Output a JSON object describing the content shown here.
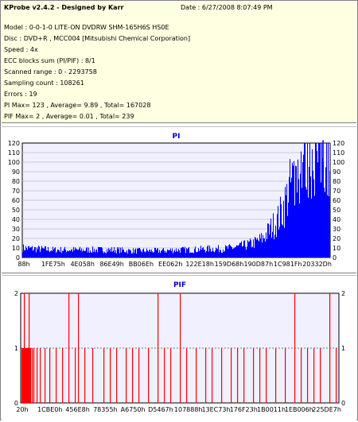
{
  "app": {
    "title": "KProbe v2.4.2 - Designed by Karr",
    "date": "Date : 6/27/2008 8:07:49 PM"
  },
  "info_lines": [
    "Model : 0-0-1-0 LITE-ON DVDRW SHM-165H6S HS0E",
    "Disc : DVD+R , MCC004 [Mitsubishi Chemical Corporation]",
    "Speed : 4x",
    "ECC blocks sum (PI/PIF) : 8/1",
    "Scanned range : 0 - 2293758",
    "Sampling count : 108261",
    "Errors : 19",
    "PI Max= 123 , Average= 9.89 , Total= 167028",
    "PIF Max= 2 , Average= 0.01 , Total= 239"
  ],
  "colors": {
    "bar": "#0000ff",
    "pif_bar": "#ff0000",
    "plot_bg": "#f0f0ff",
    "title": "#0000cc",
    "grid": "#c0c0c0"
  },
  "chart_data": [
    {
      "type": "bar",
      "title": "PI",
      "ylim": [
        0,
        120
      ],
      "yticks": [
        0,
        10,
        20,
        30,
        40,
        50,
        60,
        70,
        80,
        90,
        100,
        110,
        120
      ],
      "xtick_labels": [
        "88h",
        "1FE75h",
        "4E058h",
        "86E49h",
        "BB06Eh",
        "EE062h",
        "122E18h",
        "159D68h",
        "190D87h",
        "1C981Fh",
        "20332Dh"
      ],
      "grid": "horizontal",
      "profile": [
        [
          0,
          10
        ],
        [
          0.05,
          9
        ],
        [
          0.1,
          8
        ],
        [
          0.15,
          8
        ],
        [
          0.2,
          8
        ],
        [
          0.25,
          8
        ],
        [
          0.3,
          8
        ],
        [
          0.35,
          7
        ],
        [
          0.4,
          7
        ],
        [
          0.45,
          7
        ],
        [
          0.5,
          8
        ],
        [
          0.55,
          8
        ],
        [
          0.6,
          9
        ],
        [
          0.65,
          9
        ],
        [
          0.7,
          11
        ],
        [
          0.75,
          15
        ],
        [
          0.78,
          20
        ],
        [
          0.8,
          28
        ],
        [
          0.83,
          40
        ],
        [
          0.85,
          55
        ],
        [
          0.87,
          75
        ],
        [
          0.89,
          90
        ],
        [
          0.91,
          100
        ],
        [
          0.93,
          105
        ],
        [
          0.95,
          110
        ],
        [
          0.97,
          112
        ],
        [
          1.0,
          108
        ]
      ],
      "peak_value": 123
    },
    {
      "type": "bar",
      "title": "PIF",
      "ylim": [
        0,
        2
      ],
      "yticks": [
        0,
        1,
        2
      ],
      "xtick_labels": [
        "20h",
        "1CBE0h",
        "456E8h",
        "78355h",
        "A6750h",
        "D5467h",
        "107888h",
        "13EC73h",
        "176F23h",
        "1B0011h",
        "1EB006h",
        "225DE7h"
      ],
      "grid": "dashed",
      "events": [
        {
          "x": 0.005,
          "y": 1
        },
        {
          "x": 0.01,
          "y": 2
        },
        {
          "x": 0.015,
          "y": 1
        },
        {
          "x": 0.02,
          "y": 1
        },
        {
          "x": 0.025,
          "y": 2
        },
        {
          "x": 0.03,
          "y": 1
        },
        {
          "x": 0.035,
          "y": 1
        },
        {
          "x": 0.04,
          "y": 1
        },
        {
          "x": 0.05,
          "y": 1
        },
        {
          "x": 0.06,
          "y": 1
        },
        {
          "x": 0.075,
          "y": 1
        },
        {
          "x": 0.09,
          "y": 1
        },
        {
          "x": 0.11,
          "y": 1
        },
        {
          "x": 0.13,
          "y": 1
        },
        {
          "x": 0.15,
          "y": 2
        },
        {
          "x": 0.17,
          "y": 1
        },
        {
          "x": 0.18,
          "y": 2
        },
        {
          "x": 0.2,
          "y": 1
        },
        {
          "x": 0.225,
          "y": 1
        },
        {
          "x": 0.26,
          "y": 1
        },
        {
          "x": 0.28,
          "y": 1
        },
        {
          "x": 0.3,
          "y": 1
        },
        {
          "x": 0.33,
          "y": 1
        },
        {
          "x": 0.35,
          "y": 1
        },
        {
          "x": 0.37,
          "y": 1
        },
        {
          "x": 0.4,
          "y": 1
        },
        {
          "x": 0.43,
          "y": 2
        },
        {
          "x": 0.45,
          "y": 1
        },
        {
          "x": 0.47,
          "y": 1
        },
        {
          "x": 0.5,
          "y": 2
        },
        {
          "x": 0.52,
          "y": 1
        },
        {
          "x": 0.55,
          "y": 1
        },
        {
          "x": 0.58,
          "y": 1
        },
        {
          "x": 0.6,
          "y": 1
        },
        {
          "x": 0.63,
          "y": 1
        },
        {
          "x": 0.66,
          "y": 1
        },
        {
          "x": 0.68,
          "y": 1
        },
        {
          "x": 0.7,
          "y": 1
        },
        {
          "x": 0.73,
          "y": 1
        },
        {
          "x": 0.75,
          "y": 1
        },
        {
          "x": 0.77,
          "y": 1
        },
        {
          "x": 0.8,
          "y": 1
        },
        {
          "x": 0.83,
          "y": 1
        },
        {
          "x": 0.86,
          "y": 2
        },
        {
          "x": 0.88,
          "y": 1
        },
        {
          "x": 0.9,
          "y": 1
        },
        {
          "x": 0.92,
          "y": 1
        },
        {
          "x": 0.94,
          "y": 1
        },
        {
          "x": 0.97,
          "y": 2
        },
        {
          "x": 0.99,
          "y": 1
        }
      ]
    }
  ]
}
